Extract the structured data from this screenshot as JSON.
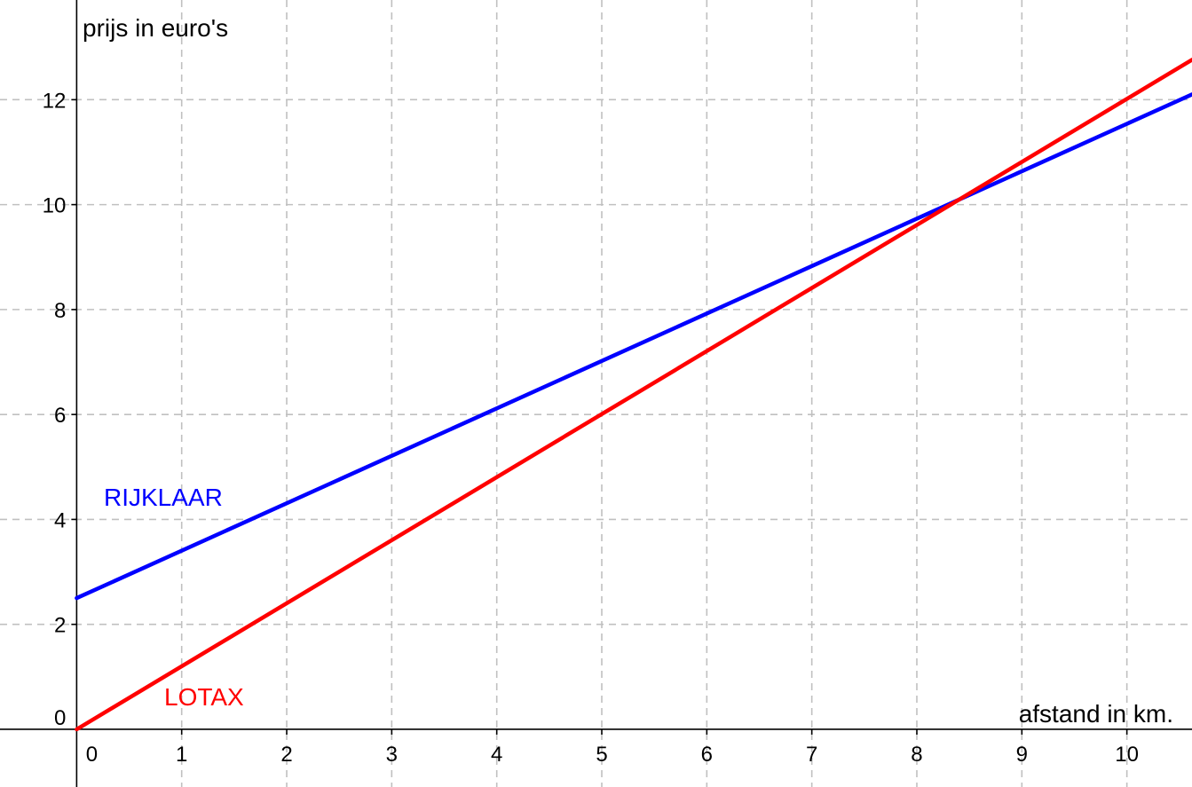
{
  "chart_data": {
    "type": "line",
    "title": "",
    "xlabel": "afstand in km.",
    "ylabel": "prijs in euro's",
    "xlim": [
      -0.73,
      10.62
    ],
    "ylim": [
      -1.1,
      13.9
    ],
    "x_ticks": [
      0,
      1,
      2,
      3,
      4,
      5,
      6,
      7,
      8,
      9,
      10
    ],
    "x_tick_labels": [
      "0",
      "1",
      "2",
      "3",
      "4",
      "5",
      "6",
      "7",
      "8",
      "9",
      "10"
    ],
    "y_ticks": [
      0,
      2,
      4,
      6,
      8,
      10,
      12
    ],
    "y_tick_labels": [
      "0",
      "2",
      "4",
      "6",
      "8",
      "10",
      "12"
    ],
    "grid": true,
    "series": [
      {
        "name": "RIJKLAAR",
        "color": "#0000ff",
        "x": [
          0,
          10.62
        ],
        "y": [
          2.5,
          12.1
        ]
      },
      {
        "name": "LOTAX",
        "color": "#ff0000",
        "x": [
          0,
          10.62
        ],
        "y": [
          0,
          12.76
        ]
      }
    ]
  }
}
